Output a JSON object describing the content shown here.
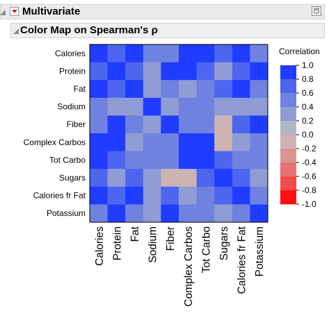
{
  "report": {
    "outline_title": "Multivariate",
    "sub_title": "Color Map on Spearman's ρ"
  },
  "colors": {
    "header_bg": "#ebebeb",
    "red_triangle": "#d41f1f"
  },
  "chart_data": {
    "type": "heatmap",
    "variables": [
      "Calories",
      "Protein",
      "Fat",
      "Sodium",
      "Fiber",
      "Complex Carbos",
      "Tot Carbo",
      "Sugars",
      "Calories fr Fat",
      "Potassium"
    ],
    "matrix": [
      [
        1.0,
        0.6,
        0.8,
        0.4,
        0.4,
        0.8,
        1.0,
        0.6,
        0.8,
        0.4
      ],
      [
        0.6,
        1.0,
        0.6,
        0.2,
        0.8,
        0.8,
        0.6,
        0.2,
        0.6,
        0.8
      ],
      [
        0.8,
        0.6,
        1.0,
        0.2,
        0.4,
        0.2,
        0.4,
        0.6,
        1.0,
        0.4
      ],
      [
        0.4,
        0.2,
        0.2,
        1.0,
        0.2,
        0.4,
        0.4,
        0.2,
        0.2,
        0.2
      ],
      [
        0.4,
        0.8,
        0.4,
        0.2,
        1.0,
        0.4,
        0.4,
        -0.2,
        0.6,
        1.0
      ],
      [
        0.8,
        0.8,
        0.2,
        0.4,
        0.4,
        1.0,
        0.8,
        -0.2,
        0.2,
        0.4
      ],
      [
        1.0,
        0.6,
        0.4,
        0.4,
        0.4,
        0.8,
        1.0,
        0.6,
        0.4,
        0.4
      ],
      [
        0.6,
        0.2,
        0.6,
        0.2,
        -0.2,
        -0.2,
        0.6,
        1.0,
        0.6,
        0.2
      ],
      [
        0.8,
        0.6,
        1.0,
        0.2,
        0.6,
        0.2,
        0.4,
        0.6,
        1.0,
        0.4
      ],
      [
        0.4,
        0.8,
        0.4,
        0.2,
        1.0,
        0.4,
        0.4,
        0.2,
        0.4,
        1.0
      ]
    ],
    "legend": {
      "title": "Correlation",
      "ticks": [
        "1.0",
        "0.8",
        "0.6",
        "0.4",
        "0.2",
        "0.0",
        "-0.2",
        "-0.4",
        "-0.6",
        "-0.8",
        "-1.0"
      ],
      "bins": [
        {
          "from": 0.8,
          "to": 1.0,
          "color": "#1f3cff"
        },
        {
          "from": 0.6,
          "to": 0.8,
          "color": "#4d66ef"
        },
        {
          "from": 0.4,
          "to": 0.6,
          "color": "#6f82df"
        },
        {
          "from": 0.2,
          "to": 0.4,
          "color": "#909cd4"
        },
        {
          "from": 0.0,
          "to": 0.2,
          "color": "#b3b6c8"
        },
        {
          "from": -0.2,
          "to": 0.0,
          "color": "#cdb3b3"
        },
        {
          "from": -0.4,
          "to": -0.2,
          "color": "#db9494"
        },
        {
          "from": -0.6,
          "to": -0.4,
          "color": "#e57373"
        },
        {
          "from": -0.8,
          "to": -0.6,
          "color": "#f04a4a"
        },
        {
          "from": -1.0,
          "to": -0.8,
          "color": "#ff1010"
        }
      ]
    },
    "range": [
      -1.0,
      1.0
    ]
  }
}
